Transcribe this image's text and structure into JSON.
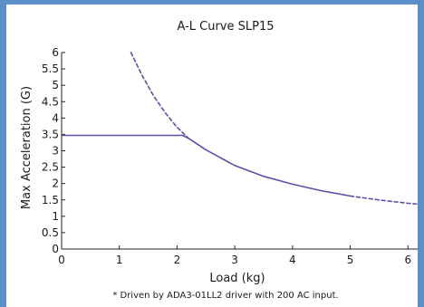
{
  "chart_data": {
    "type": "line",
    "title": "A-L Curve  SLP15",
    "xlabel": "Load (kg)",
    "ylabel": "Max Acceleration (G)",
    "footnote": "* Driven by ADA3-01LL2 driver with 200 AC input.",
    "xlim": [
      0,
      6.2
    ],
    "ylim": [
      0,
      6
    ],
    "xticks": [
      0,
      1,
      2,
      3,
      4,
      5,
      6
    ],
    "yticks": [
      0,
      0.5,
      1,
      1.5,
      2,
      2.5,
      3,
      3.5,
      4,
      4.5,
      5,
      5.5,
      6
    ],
    "grid": false,
    "series": [
      {
        "style": "solid",
        "color": "#5a52a8",
        "x": [
          0,
          2.1,
          2.2,
          2.5,
          3.0,
          3.5,
          4.0,
          4.5,
          5.0
        ],
        "y": [
          3.47,
          3.47,
          3.38,
          3.03,
          2.55,
          2.22,
          1.98,
          1.78,
          1.62
        ]
      },
      {
        "style": "dashed",
        "color": "#5a52a8",
        "x": [
          1.2,
          1.4,
          1.6,
          1.8,
          2.0,
          2.2
        ],
        "y": [
          6.0,
          5.28,
          4.66,
          4.15,
          3.72,
          3.38
        ]
      },
      {
        "style": "dashed",
        "color": "#5a52a8",
        "x": [
          5.0,
          5.5,
          6.0,
          6.2
        ],
        "y": [
          1.62,
          1.5,
          1.4,
          1.37
        ]
      }
    ]
  }
}
